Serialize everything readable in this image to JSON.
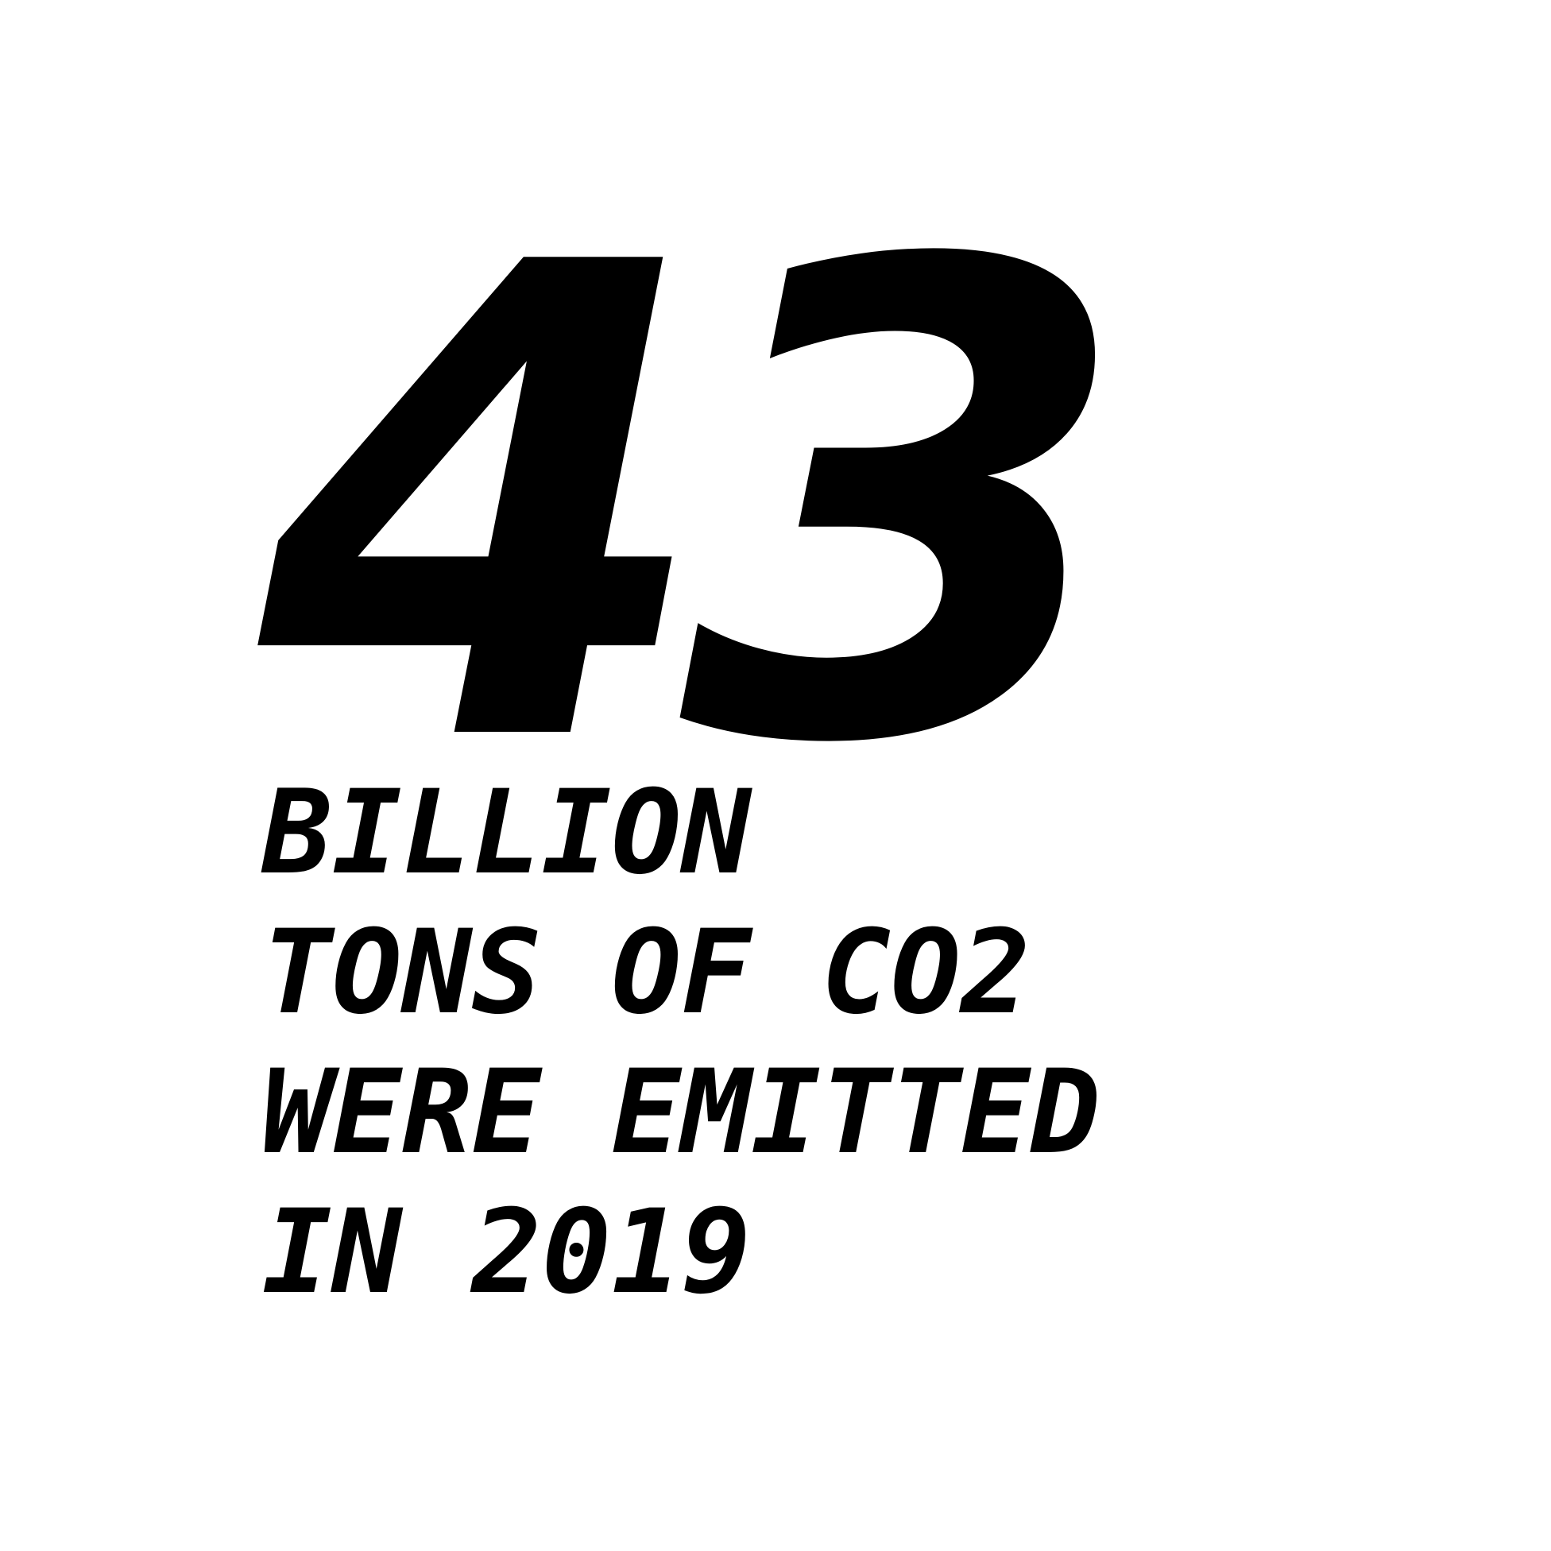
{
  "stat": {
    "number": "43",
    "lines": [
      "BILLION",
      "TONS OF CO2",
      "WERE EMITTED",
      "IN 2019"
    ]
  },
  "colors": {
    "background": "#ffffff",
    "text": "#000000"
  }
}
